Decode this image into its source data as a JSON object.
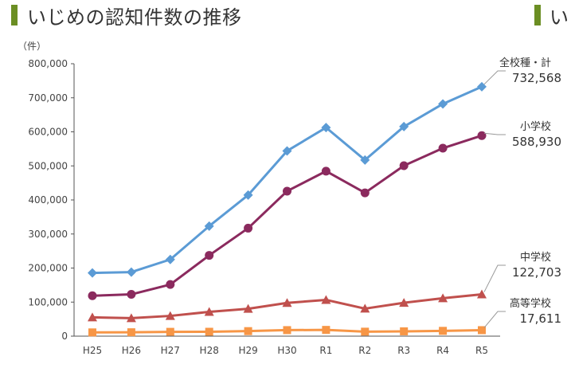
{
  "header": {
    "title": "いじめの認知件数の推移",
    "second_title_fragment": "い"
  },
  "chart_data": {
    "type": "line",
    "title": "いじめの認知件数の推移",
    "unit_label": "（件）",
    "xlabel": "",
    "ylabel": "",
    "categories": [
      "H25",
      "H26",
      "H27",
      "H28",
      "H29",
      "H30",
      "R1",
      "R2",
      "R3",
      "R4",
      "R5"
    ],
    "y_ticks": [
      "0",
      "100,000",
      "200,000",
      "300,000",
      "400,000",
      "500,000",
      "600,000",
      "700,000",
      "800,000"
    ],
    "ylim": [
      0,
      800000
    ],
    "grid": false,
    "legend": "direct labels at right",
    "series": [
      {
        "name": "全校種・計",
        "end_label": "732,568",
        "color": "#5b9bd5",
        "marker": "diamond",
        "values": [
          185803,
          188072,
          225132,
          323143,
          414378,
          543933,
          612496,
          517163,
          615351,
          681948,
          732568
        ]
      },
      {
        "name": "小学校",
        "end_label": "588,930",
        "color": "#8b2a5e",
        "marker": "circle",
        "values": [
          118748,
          122734,
          151692,
          237256,
          317121,
          425844,
          484545,
          420897,
          500562,
          551944,
          588930
        ]
      },
      {
        "name": "中学校",
        "end_label": "122,703",
        "color": "#c0504d",
        "marker": "triangle",
        "values": [
          55248,
          52971,
          59502,
          71309,
          80424,
          97704,
          106524,
          80877,
          97937,
          111404,
          122703
        ]
      },
      {
        "name": "高等学校",
        "end_label": "17,611",
        "color": "#f79646",
        "marker": "square",
        "values": [
          11039,
          11404,
          12664,
          12874,
          14789,
          17709,
          18352,
          13126,
          14157,
          15568,
          17611
        ]
      }
    ]
  }
}
